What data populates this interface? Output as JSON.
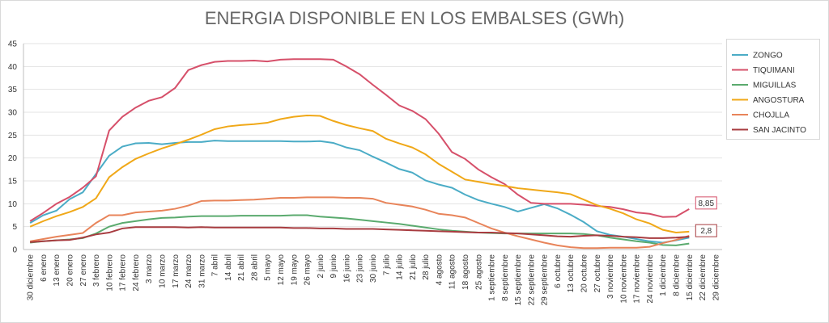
{
  "chart_data": {
    "type": "line",
    "title": "ENERGIA DISPONIBLE EN LOS EMBALSES (GWh)",
    "categories": [
      "30 diciembre",
      "6 enero",
      "13 enero",
      "20 enero",
      "27 enero",
      "3 febrero",
      "10 febrero",
      "17 febrero",
      "24 febrero",
      "3 marzo",
      "10 marzo",
      "17 marzo",
      "24 marzo",
      "31 marzo",
      "7 abril",
      "14 abril",
      "21 abril",
      "28 abril",
      "5 mayo",
      "12 mayo",
      "19 mayo",
      "26 mayo",
      "2 junio",
      "9 junio",
      "16 junio",
      "23 junio",
      "30 junio",
      "7 julio",
      "14 julio",
      "21 julio",
      "28 julio",
      "4 agosto",
      "11 agosto",
      "18 agosto",
      "25 agosto",
      "1 septiembre",
      "8 septiembre",
      "15 septiembre",
      "22 septiembre",
      "29 septiembre",
      "6 octubre",
      "13 octubre",
      "20 octubre",
      "27 octubre",
      "3 noviembre",
      "10 noviembre",
      "17 noviembre",
      "24 noviembre",
      "1 diciembre",
      "8 diciembre",
      "15 diciembre",
      "22 diciembre",
      "29 diciembre"
    ],
    "series": [
      {
        "name": "ZONGO",
        "color": "#4bacc6",
        "values": [
          5.8,
          7.5,
          8.5,
          11,
          12.5,
          16.5,
          20.5,
          22.5,
          23.2,
          23.3,
          23,
          23.3,
          23.5,
          23.5,
          23.8,
          23.7,
          23.7,
          23.7,
          23.7,
          23.7,
          23.6,
          23.6,
          23.7,
          23.3,
          22.3,
          21.7,
          20.3,
          19,
          17.6,
          16.8,
          15.1,
          14.2,
          13.5,
          12,
          10.8,
          10,
          9.3,
          8.3,
          9.1,
          9.9,
          9,
          7.6,
          6,
          4,
          3.2,
          2.8,
          2.3,
          1.8,
          1.5,
          2,
          2.6,
          null,
          null
        ]
      },
      {
        "name": "TIQUIMANI",
        "color": "#d6506a",
        "values": [
          6.2,
          8,
          10,
          11.5,
          13.5,
          16,
          26,
          29,
          31,
          32.5,
          33.3,
          35.3,
          39.2,
          40.3,
          41,
          41.2,
          41.2,
          41.3,
          41.1,
          41.5,
          41.6,
          41.6,
          41.6,
          41.5,
          40,
          38.3,
          36,
          33.8,
          31.5,
          30.3,
          28.5,
          25.3,
          21.3,
          19.8,
          17.5,
          15.8,
          14.3,
          12,
          10.2,
          10,
          10,
          10,
          9.8,
          9.5,
          9.3,
          8.8,
          8.1,
          7.8,
          7.1,
          7.2,
          8.85,
          null,
          null
        ],
        "value_labels": [
          null,
          null,
          null,
          null,
          null,
          null,
          null,
          null,
          null,
          null,
          null,
          null,
          null,
          null,
          null,
          null,
          null,
          null,
          null,
          null,
          null,
          null,
          null,
          null,
          null,
          null,
          null,
          null,
          null,
          null,
          null,
          null,
          null,
          null,
          null,
          null,
          null,
          null,
          null,
          null,
          null,
          null,
          null,
          null,
          null,
          null,
          null,
          null,
          null,
          null,
          "8,85",
          null,
          null
        ]
      },
      {
        "name": "MIGUILLAS",
        "color": "#5aaa6e",
        "values": [
          1.5,
          1.8,
          2,
          2.2,
          2.5,
          3.5,
          5,
          5.8,
          6.2,
          6.6,
          6.9,
          7,
          7.2,
          7.3,
          7.3,
          7.3,
          7.4,
          7.4,
          7.4,
          7.4,
          7.5,
          7.5,
          7.2,
          7,
          6.8,
          6.5,
          6.2,
          5.9,
          5.6,
          5.2,
          4.8,
          4.4,
          4.1,
          3.9,
          3.7,
          3.6,
          3.5,
          3.5,
          3.5,
          3.5,
          3.5,
          3.5,
          3.4,
          3.1,
          2.6,
          2.2,
          1.8,
          1.5,
          1,
          0.9,
          1.3,
          null,
          null
        ]
      },
      {
        "name": "ANGOSTURA",
        "color": "#f0a818",
        "values": [
          5,
          6.2,
          7.3,
          8.2,
          9.3,
          11.2,
          15.8,
          18,
          19.8,
          21,
          22.1,
          23,
          24,
          25.1,
          26.3,
          26.9,
          27.2,
          27.4,
          27.7,
          28.5,
          29,
          29.3,
          29.2,
          28.1,
          27.2,
          26.5,
          25.9,
          24.2,
          23.2,
          22.3,
          20.8,
          18.7,
          17,
          15.3,
          14.8,
          14.3,
          13.9,
          13.4,
          13.1,
          12.8,
          12.5,
          12.1,
          10.9,
          9.7,
          8.9,
          7.9,
          6.6,
          5.7,
          4.3,
          3.7,
          3.9,
          null,
          null
        ]
      },
      {
        "name": "CHOJLLA",
        "color": "#e8845a",
        "values": [
          1.8,
          2.3,
          2.8,
          3.2,
          3.6,
          5.8,
          7.5,
          7.5,
          8.1,
          8.3,
          8.5,
          8.9,
          9.6,
          10.6,
          10.7,
          10.7,
          10.8,
          10.9,
          11.1,
          11.3,
          11.3,
          11.4,
          11.4,
          11.4,
          11.3,
          11.3,
          11.1,
          10.2,
          9.8,
          9.4,
          8.7,
          7.8,
          7.5,
          7,
          5.8,
          4.6,
          3.7,
          2.9,
          2.2,
          1.5,
          0.9,
          0.5,
          0.3,
          0.3,
          0.4,
          0.4,
          0.4,
          0.6,
          1.4,
          2.1,
          3,
          null,
          null
        ]
      },
      {
        "name": "SAN JACINTO",
        "color": "#a83c40",
        "values": [
          1.6,
          1.8,
          2,
          2.1,
          2.6,
          3.3,
          3.7,
          4.6,
          4.9,
          4.9,
          4.9,
          4.9,
          4.8,
          4.9,
          4.8,
          4.8,
          4.8,
          4.8,
          4.8,
          4.8,
          4.7,
          4.7,
          4.6,
          4.6,
          4.5,
          4.5,
          4.5,
          4.4,
          4.3,
          4.2,
          4.1,
          4,
          3.9,
          3.8,
          3.7,
          3.7,
          3.6,
          3.5,
          3.3,
          3.1,
          2.9,
          2.8,
          3,
          3.1,
          3,
          2.8,
          2.7,
          2.5,
          2.5,
          2.6,
          2.8,
          null,
          null
        ],
        "value_labels": [
          null,
          null,
          null,
          null,
          null,
          null,
          null,
          null,
          null,
          null,
          null,
          null,
          null,
          null,
          null,
          null,
          null,
          null,
          null,
          null,
          null,
          null,
          null,
          null,
          null,
          null,
          null,
          null,
          null,
          null,
          null,
          null,
          null,
          null,
          null,
          null,
          null,
          null,
          null,
          null,
          null,
          null,
          null,
          null,
          null,
          null,
          null,
          null,
          null,
          null,
          "2,8",
          null,
          null
        ]
      }
    ],
    "ylim": [
      0,
      45
    ],
    "yticks": [
      0,
      5,
      10,
      15,
      20,
      25,
      30,
      35,
      40,
      45
    ],
    "grid": true,
    "legend": "right"
  }
}
